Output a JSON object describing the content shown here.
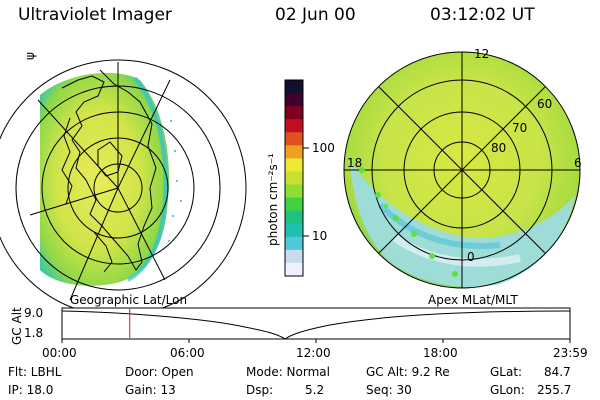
{
  "header": {
    "instrument": "Ultraviolet Imager",
    "date": "02 Jun 00",
    "time": "03:12:02 UT"
  },
  "left_panel": {
    "corner_label": "ψ"
  },
  "colorbar": {
    "label": "photon cm⁻²s⁻¹",
    "ticks": [
      {
        "label": "100",
        "value": 100
      },
      {
        "label": "10",
        "value": 10
      }
    ],
    "colors": [
      "#f0f0ff",
      "#c8dcf0",
      "#50c8d8",
      "#20c0b0",
      "#20c080",
      "#40d040",
      "#90dc30",
      "#c8e030",
      "#f0e830",
      "#f0a020",
      "#e05020",
      "#c01020",
      "#800020",
      "#400030",
      "#101030"
    ]
  },
  "right_panel": {
    "mlt_labels": [
      "12",
      "18",
      "6",
      "0"
    ],
    "mlat_labels": [
      "60",
      "70",
      "80"
    ]
  },
  "timeline": {
    "y_axis_label": "GC Alt",
    "left_title": "Geographic Lat/Lon",
    "right_title": "Apex MLat/MLT",
    "y_ticks": [
      "9.0",
      "1.8"
    ],
    "x_ticks": [
      "00:00",
      "06:00",
      "12:00",
      "18:00",
      "23:59"
    ],
    "current_time_hours": 3.2
  },
  "info": {
    "flt": "Flt: LBHL",
    "ip": "IP: 18.0",
    "door": "Door: Open",
    "gain": "Gain: 13",
    "mode": "Mode: Normal",
    "dsp": "Dsp:",
    "dsp_value": "5.2",
    "gc_alt": "GC Alt: 9.2 Re",
    "seq": "Seq: 30",
    "glat": "GLat:",
    "glat_value": "84.7",
    "glon": "GLon:",
    "glon_value": "255.7"
  }
}
